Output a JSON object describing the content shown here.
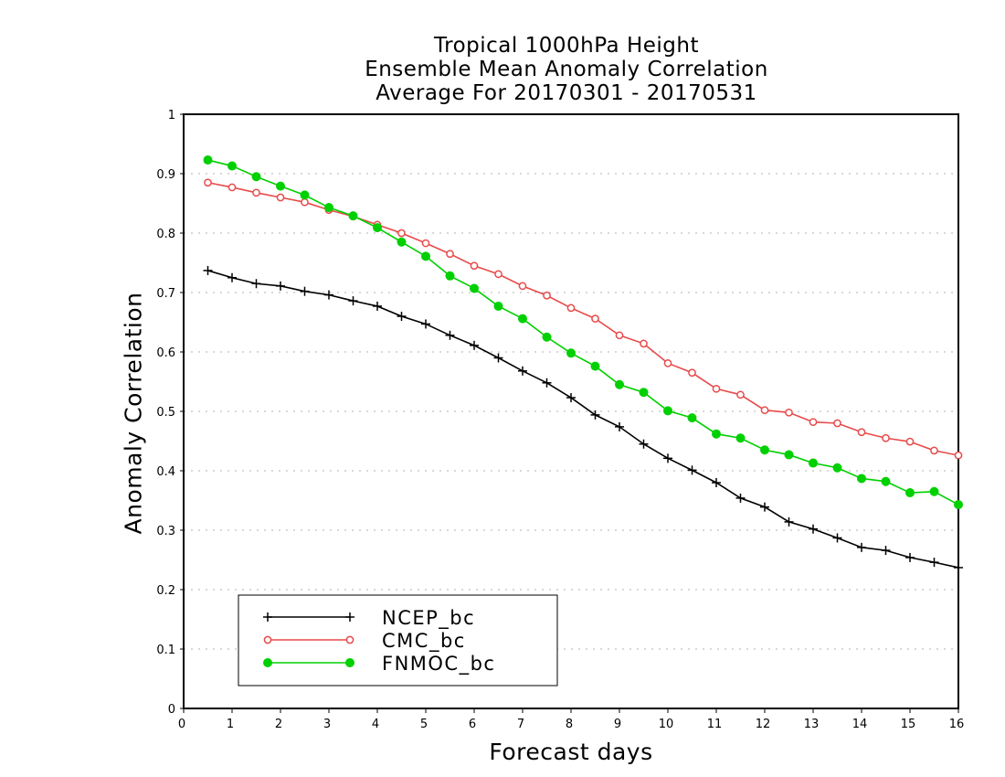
{
  "chart_data": {
    "type": "line",
    "title_lines": [
      "Tropical 1000hPa Height",
      "Ensemble Mean Anomaly Correlation",
      "Average For 20170301 - 20170531"
    ],
    "xlabel": "Forecast days",
    "ylabel": "Anomaly Correlation",
    "xlim": [
      0,
      16
    ],
    "ylim": [
      0,
      1
    ],
    "xticks": [
      "0",
      "1",
      "2",
      "3",
      "4",
      "5",
      "6",
      "7",
      "8",
      "9",
      "10",
      "11",
      "12",
      "13",
      "14",
      "15",
      "16"
    ],
    "yticks": [
      "0",
      "0.1",
      "0.2",
      "0.3",
      "0.4",
      "0.5",
      "0.6",
      "0.7",
      "0.8",
      "0.9",
      "1"
    ],
    "grid": true,
    "legend_position": "bottom-left",
    "x": [
      0.5,
      1,
      1.5,
      2,
      2.5,
      3,
      3.5,
      4,
      4.5,
      5,
      5.5,
      6,
      6.5,
      7,
      7.5,
      8,
      8.5,
      9,
      9.5,
      10,
      10.5,
      11,
      11.5,
      12,
      12.5,
      13,
      13.5,
      14,
      14.5,
      15,
      15.5,
      16
    ],
    "series": [
      {
        "name": "NCEP_bc",
        "color": "#000000",
        "marker": "plus",
        "values": [
          0.737,
          0.725,
          0.715,
          0.711,
          0.702,
          0.696,
          0.686,
          0.677,
          0.66,
          0.647,
          0.628,
          0.611,
          0.59,
          0.568,
          0.548,
          0.523,
          0.494,
          0.474,
          0.445,
          0.421,
          0.401,
          0.38,
          0.354,
          0.339,
          0.314,
          0.302,
          0.287,
          0.271,
          0.266,
          0.254,
          0.246,
          0.237
        ]
      },
      {
        "name": "CMC_bc",
        "color": "#e84a4a",
        "marker": "open-circle",
        "values": [
          0.885,
          0.877,
          0.868,
          0.86,
          0.852,
          0.839,
          0.828,
          0.814,
          0.8,
          0.783,
          0.765,
          0.745,
          0.731,
          0.711,
          0.695,
          0.674,
          0.656,
          0.628,
          0.614,
          0.581,
          0.565,
          0.538,
          0.528,
          0.502,
          0.498,
          0.482,
          0.48,
          0.465,
          0.455,
          0.449,
          0.434,
          0.426
        ]
      },
      {
        "name": "FNMOC_bc",
        "color": "#00d000",
        "marker": "filled-circle",
        "values": [
          0.923,
          0.913,
          0.895,
          0.879,
          0.864,
          0.843,
          0.829,
          0.809,
          0.785,
          0.761,
          0.728,
          0.707,
          0.677,
          0.656,
          0.625,
          0.598,
          0.576,
          0.545,
          0.532,
          0.501,
          0.489,
          0.462,
          0.455,
          0.435,
          0.427,
          0.413,
          0.405,
          0.387,
          0.382,
          0.363,
          0.365,
          0.343
        ]
      }
    ]
  }
}
